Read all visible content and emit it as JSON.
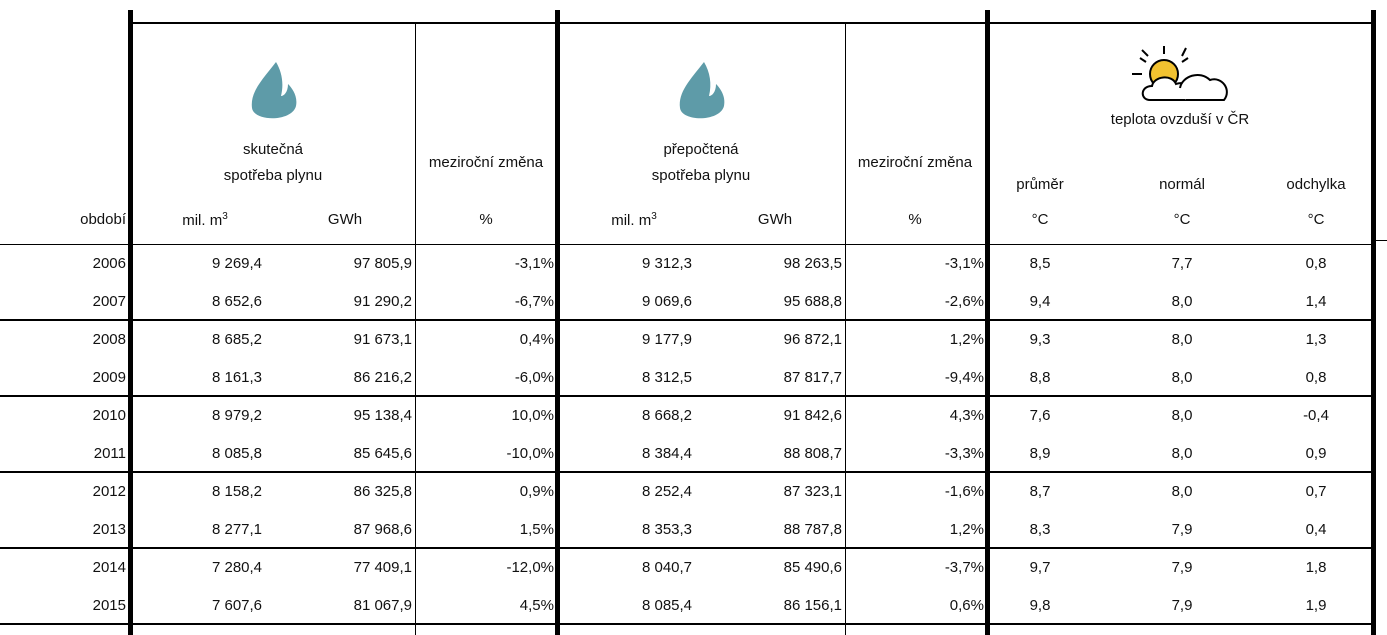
{
  "headers": {
    "period": "období",
    "actual": [
      "skutečná",
      "spotřeba plynu"
    ],
    "change": "meziroční změna",
    "recalculated": [
      "přepočtená",
      "spotřeba plynu"
    ],
    "change2": "meziroční změna",
    "temperature": "teplota ovzduší v ČR",
    "avg": "průměr",
    "normal": "normál",
    "deviation": "odchylka"
  },
  "units": [
    {
      "base": "mil. m",
      "sup": "3"
    },
    "GWh",
    "%",
    {
      "base": "mil. m",
      "sup": "3"
    },
    "GWh",
    "%",
    "°C",
    "°C",
    "°C"
  ],
  "rows": [
    [
      "2006",
      "9 269,4",
      "97 805,9",
      "-3,1%",
      "9 312,3",
      "98 263,5",
      "-3,1%",
      "8,5",
      "7,7",
      "0,8"
    ],
    [
      "2007",
      "8 652,6",
      "91 290,2",
      "-6,7%",
      "9 069,6",
      "95 688,8",
      "-2,6%",
      "9,4",
      "8,0",
      "1,4"
    ],
    [
      "2008",
      "8 685,2",
      "91 673,1",
      "0,4%",
      "9 177,9",
      "96 872,1",
      "1,2%",
      "9,3",
      "8,0",
      "1,3"
    ],
    [
      "2009",
      "8 161,3",
      "86 216,2",
      "-6,0%",
      "8 312,5",
      "87 817,7",
      "-9,4%",
      "8,8",
      "8,0",
      "0,8"
    ],
    [
      "2010",
      "8 979,2",
      "95 138,4",
      "10,0%",
      "8 668,2",
      "91 842,6",
      "4,3%",
      "7,6",
      "8,0",
      "-0,4"
    ],
    [
      "2011",
      "8 085,8",
      "85 645,6",
      "-10,0%",
      "8 384,4",
      "88 808,7",
      "-3,3%",
      "8,9",
      "8,0",
      "0,9"
    ],
    [
      "2012",
      "8 158,2",
      "86 325,8",
      "0,9%",
      "8 252,4",
      "87 323,1",
      "-1,6%",
      "8,7",
      "8,0",
      "0,7"
    ],
    [
      "2013",
      "8 277,1",
      "87 968,6",
      "1,5%",
      "8 353,3",
      "88 787,8",
      "1,2%",
      "8,3",
      "7,9",
      "0,4"
    ],
    [
      "2014",
      "7 280,4",
      "77 409,1",
      "-12,0%",
      "8 040,7",
      "85 490,6",
      "-3,7%",
      "9,7",
      "7,9",
      "1,8"
    ],
    [
      "2015",
      "7 607,6",
      "81 067,9",
      "4,5%",
      "8 085,4",
      "86 156,1",
      "0,6%",
      "9,8",
      "7,9",
      "1,9"
    ]
  ]
}
